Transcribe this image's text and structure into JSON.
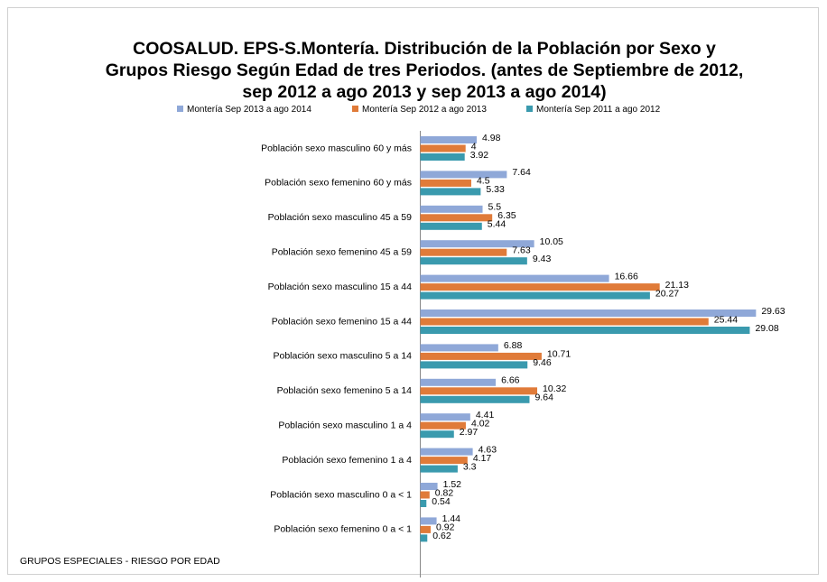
{
  "chart_data": {
    "type": "hbar",
    "title": "COOSALUD. EPS-S.Montería. Distribución de la Población por Sexo y Grupos Riesgo Según Edad de tres Periodos. (antes de Septiembre de 2012, sep 2012 a ago 2013 y sep 2013 a ago 2014)",
    "footer": "GRUPOS ESPECIALES - RIESGO POR EDAD",
    "categories": [
      "Población sexo masculino 60 y más",
      "Población sexo femenino 60 y más",
      "Población sexo masculino 45 a 59",
      "Población sexo femenino 45 a 59",
      "Población sexo masculino 15 a 44",
      "Población sexo femenino 15 a 44",
      "Población sexo masculino 5 a 14",
      "Población sexo femenino 5 a 14",
      "Población sexo masculino 1 a 4",
      "Población sexo femenino 1 a 4",
      "Población sexo masculino 0 a < 1",
      "Población sexo femenino 0 a < 1"
    ],
    "series": [
      {
        "name": "Montería Sep 2013 a ago 2014",
        "color": "#8fa8d8",
        "values": [
          4.98,
          7.64,
          5.5,
          10.05,
          16.66,
          29.63,
          6.88,
          6.66,
          4.41,
          4.63,
          1.52,
          1.44
        ]
      },
      {
        "name": "Montería Sep 2012 a ago 2013",
        "color": "#e07b39",
        "values": [
          4,
          4.5,
          6.35,
          7.63,
          21.13,
          25.44,
          10.71,
          10.32,
          4.02,
          4.17,
          0.82,
          0.92
        ]
      },
      {
        "name": "Montería Sep 2011 a ago 2012",
        "color": "#3a9aae",
        "values": [
          3.92,
          5.33,
          5.44,
          9.43,
          20.27,
          29.08,
          9.46,
          9.64,
          2.97,
          3.3,
          0.54,
          0.62
        ]
      }
    ],
    "xlim": [
      0,
      30
    ]
  }
}
